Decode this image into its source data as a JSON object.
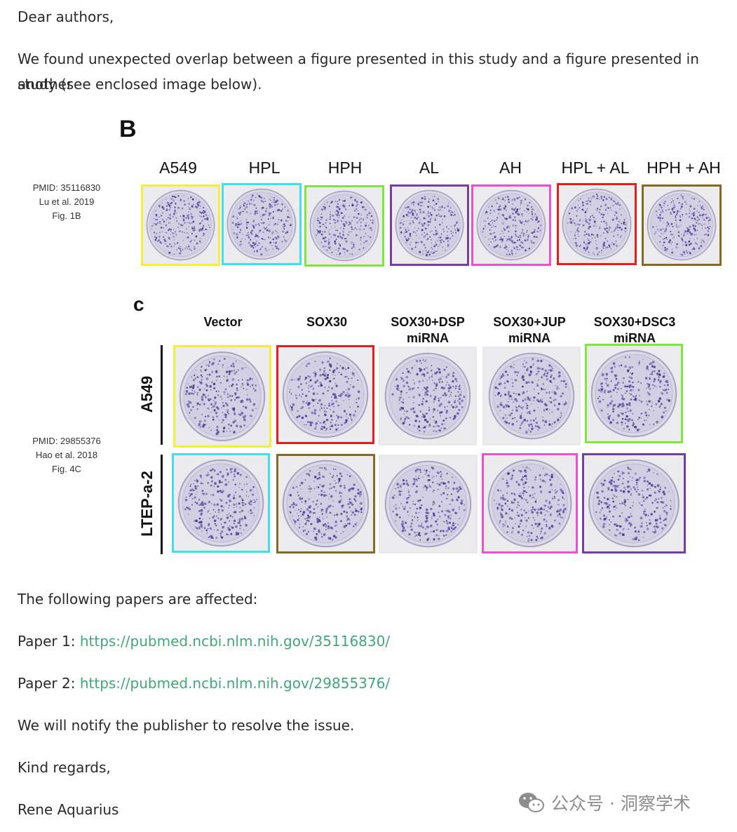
{
  "letter": {
    "greeting": "Dear authors,",
    "intro_line1": "We found unexpected overlap between a figure presented in this study and a figure presented in another",
    "intro_line2": "study (see enclosed image below).",
    "affected": "The following papers are affected:",
    "paper1_label": "Paper 1:",
    "paper1_url": "https://pubmed.ncbi.nlm.nih.gov/35116830/",
    "paper2_label": "Paper 2:",
    "paper2_url": "https://pubmed.ncbi.nlm.nih.gov/29855376/",
    "notify": "We will notify the publisher to resolve the issue.",
    "closing": "Kind regards,",
    "signature": "Rene Aquarius"
  },
  "figure1": {
    "letter": "B",
    "meta": [
      "PMID: 35116830",
      "Lu et al. 2019",
      "Fig. 1B"
    ],
    "conditions": [
      "A549",
      "HPL",
      "HPH",
      "AL",
      "AH",
      "HPL + AL",
      "HPH + AH"
    ]
  },
  "figure2": {
    "letter": "c",
    "meta": [
      "PMID: 29855376",
      "Hao et al. 2018",
      "Fig. 4C"
    ],
    "columns": [
      {
        "line1": "Vector",
        "line2": ""
      },
      {
        "line1": "SOX30",
        "line2": ""
      },
      {
        "line1": "SOX30+DSP",
        "line2": "miRNA"
      },
      {
        "line1": "SOX30+JUP",
        "line2": "miRNA"
      },
      {
        "line1": "SOX30+DSC3",
        "line2": "miRNA"
      }
    ],
    "rows": [
      "A549",
      "LTEP-a-2"
    ]
  },
  "highlight_colors": {
    "yellow": "#f7ee3c",
    "cyan": "#3fe0ee",
    "green": "#7fe63f",
    "purple": "#7a3ea0",
    "magenta": "#ee4fd0",
    "red": "#e51e1e",
    "brown": "#8a6a22"
  },
  "watermark": {
    "icon": "wechat-icon",
    "text": "公众号 · 洞察学术"
  }
}
